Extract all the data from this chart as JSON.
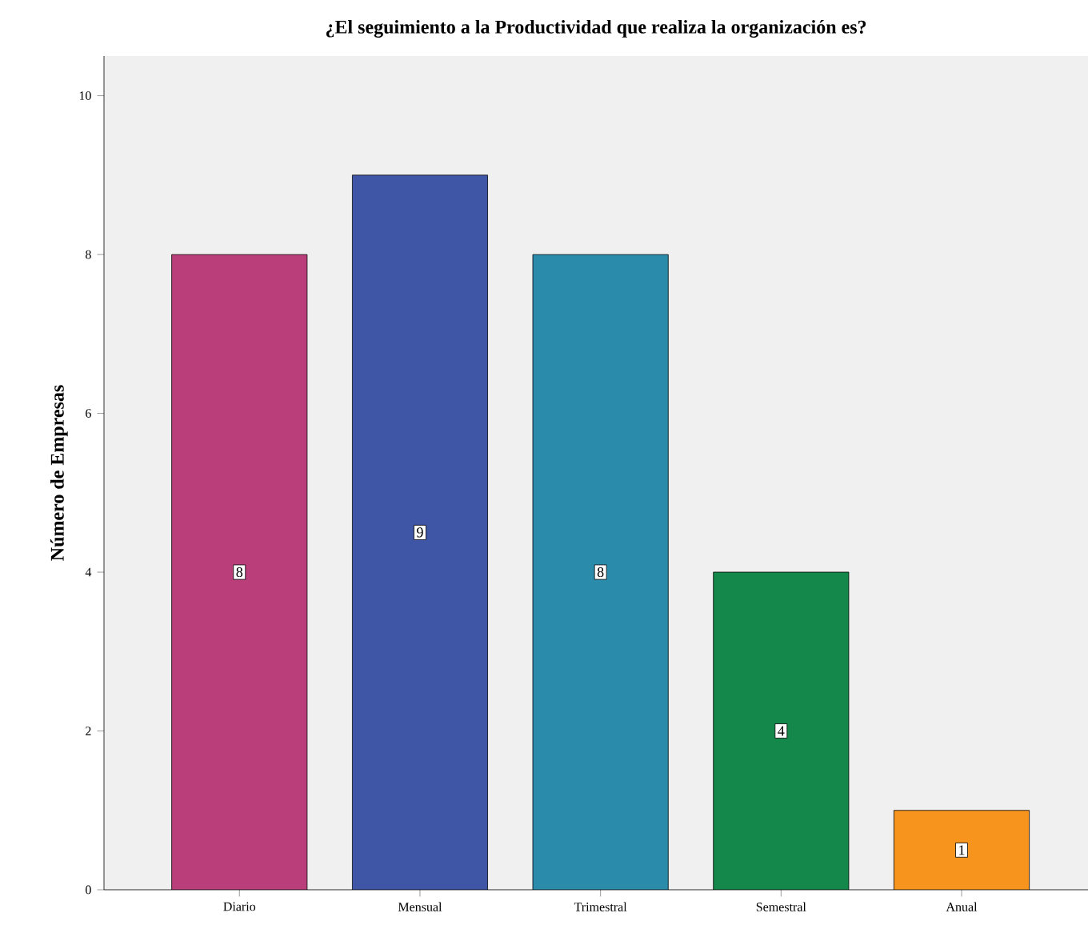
{
  "chart_data": {
    "type": "bar",
    "title": "¿El seguimiento a la Productividad que realiza la organización es?",
    "ylabel": "Número de Empresas",
    "categories": [
      "Diario",
      "Mensual",
      "Trimestral",
      "Semestral",
      "Anual"
    ],
    "values": [
      8,
      9,
      8,
      4,
      1
    ],
    "colors": [
      "#b93e7a",
      "#3f55a6",
      "#2a8caa",
      "#13884a",
      "#f7941d"
    ],
    "ylim": [
      0,
      10.5
    ],
    "yticks": [
      0,
      2,
      4,
      6,
      8,
      10
    ],
    "grid": false,
    "data_labels": true
  }
}
